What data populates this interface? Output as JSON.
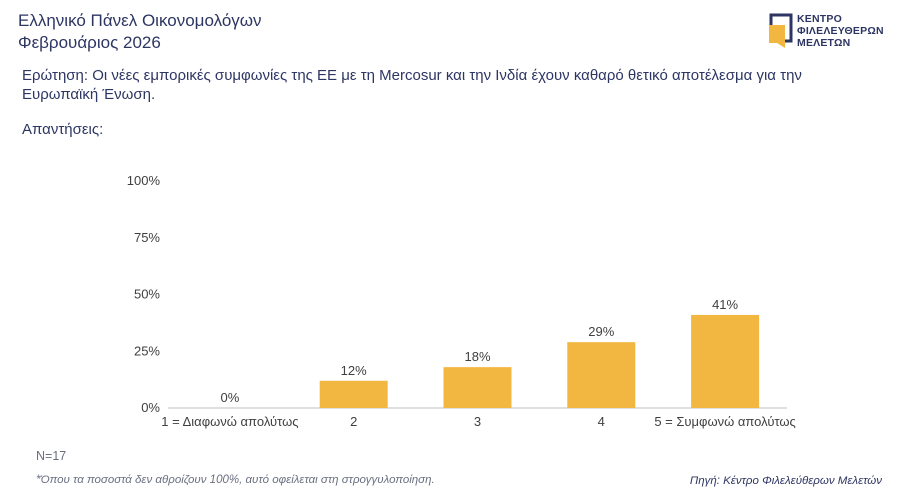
{
  "header": {
    "title_line1": "Ελληνικό Πάνελ Οικονομολόγων",
    "title_line2": "Φεβρουάριος 2026"
  },
  "logo": {
    "line1": "ΚΕΝΤΡΟ",
    "line2": "ΦΙΛΕΛΕΥΘΕΡΩΝ",
    "line3": "ΜΕΛΕΤΩΝ",
    "accent_color": "#f2b740",
    "dark_color": "#2d3563"
  },
  "question": "Ερώτηση: Οι νέες εμπορικές συμφωνίες της ΕΕ με τη Mercosur και την Ινδία έχουν καθαρό θετικό αποτέλεσμα για την Ευρωπαϊκή Ένωση.",
  "answers_label": "Απαντήσεις:",
  "footer": {
    "sample": "N=17",
    "footnote": "*Όπου τα ποσοστά δεν αθροίζουν 100%, αυτό οφείλεται στη στρογγυλοποίηση.",
    "source": "Πηγή: Κέντρο Φιλελεύθερων Μελετών"
  },
  "chart_data": {
    "type": "bar",
    "categories": [
      "1 = Διαφωνώ απολύτως",
      "2",
      "3",
      "4",
      "5 = Συμφωνώ απολύτως"
    ],
    "values": [
      0,
      12,
      18,
      29,
      41
    ],
    "data_labels": [
      "0%",
      "12%",
      "18%",
      "29%",
      "41%"
    ],
    "ylim": [
      0,
      100
    ],
    "yticks": [
      0,
      25,
      50,
      75,
      100
    ],
    "ytick_labels": [
      "0%",
      "25%",
      "50%",
      "75%",
      "100%"
    ],
    "bar_color": "#f2b740",
    "grid": false,
    "legend": "none"
  }
}
